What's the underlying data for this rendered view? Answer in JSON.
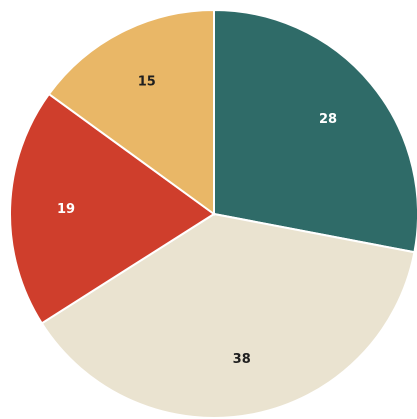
{
  "chart_data": {
    "type": "pie",
    "slices": [
      {
        "label": "28",
        "value": 28,
        "color": "#2F6B68",
        "label_color": "#FFFFFF"
      },
      {
        "label": "38",
        "value": 38,
        "color": "#EAE3D0",
        "label_color": "#1F1F1F"
      },
      {
        "label": "19",
        "value": 19,
        "color": "#CF3E2C",
        "label_color": "#FFFFFF"
      },
      {
        "label": "15",
        "value": 15,
        "color": "#E9B767",
        "label_color": "#1F1F1F"
      }
    ],
    "start_angle_deg": 0,
    "direction": "clockwise",
    "legend": "none",
    "title": ""
  }
}
